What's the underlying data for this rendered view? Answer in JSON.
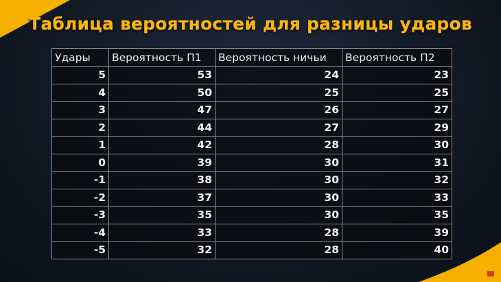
{
  "title": "Таблица вероятностей для разницы ударов",
  "colors": {
    "accent": "#f5b000",
    "title": "#f8b616"
  },
  "table": {
    "headers": [
      "Удары",
      "Вероятность П1",
      "Вероятность ничьи",
      "Вероятность П2"
    ],
    "rows": [
      [
        "5",
        "53",
        "24",
        "23"
      ],
      [
        "4",
        "50",
        "25",
        "25"
      ],
      [
        "3",
        "47",
        "26",
        "27"
      ],
      [
        "2",
        "44",
        "27",
        "29"
      ],
      [
        "1",
        "42",
        "28",
        "30"
      ],
      [
        "0",
        "39",
        "30",
        "31"
      ],
      [
        "-1",
        "38",
        "30",
        "32"
      ],
      [
        "-2",
        "37",
        "30",
        "33"
      ],
      [
        "-3",
        "35",
        "30",
        "35"
      ],
      [
        "-4",
        "33",
        "28",
        "39"
      ],
      [
        "-5",
        "32",
        "28",
        "40"
      ]
    ]
  }
}
